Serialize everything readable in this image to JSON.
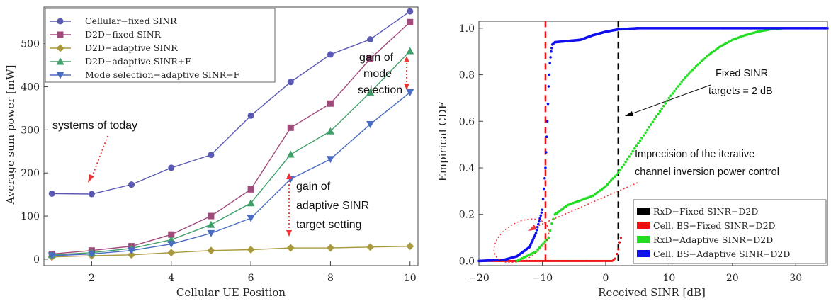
{
  "chart_data": [
    {
      "type": "line",
      "title": "",
      "xlabel": "Cellular UE Position",
      "ylabel": "Average sum power [mW]",
      "x": [
        1,
        2,
        3,
        4,
        5,
        6,
        7,
        8,
        9,
        10
      ],
      "xlim": [
        0.8,
        10.2
      ],
      "ylim": [
        -15,
        585
      ],
      "xticks": [
        2,
        4,
        6,
        8,
        10
      ],
      "yticks": [
        0,
        100,
        200,
        300,
        400,
        500
      ],
      "grid": false,
      "legend_position": "top-left",
      "series": [
        {
          "name": "Cellular−fixed SINR",
          "color": "#5a5ab4",
          "marker": "circle",
          "values": [
            152,
            151,
            173,
            212,
            242,
            333,
            411,
            475,
            510,
            575
          ]
        },
        {
          "name": "D2D−fixed SINR",
          "color": "#a04a7c",
          "marker": "square",
          "values": [
            12,
            20,
            30,
            57,
            100,
            162,
            305,
            361,
            465,
            550
          ]
        },
        {
          "name": "D2D−adaptive SINR",
          "color": "#a89a3c",
          "marker": "diamond",
          "values": [
            5,
            8,
            10,
            15,
            20,
            22,
            26,
            26,
            28,
            30
          ]
        },
        {
          "name": "D2D−adaptive SINR+F",
          "color": "#3fa06a",
          "marker": "triangle-up",
          "values": [
            10,
            15,
            25,
            45,
            80,
            130,
            243,
            297,
            387,
            483
          ]
        },
        {
          "name": "Mode selection−adaptive SINR+F",
          "color": "#4a6cc0",
          "marker": "triangle-down",
          "values": [
            8,
            12,
            20,
            35,
            60,
            95,
            186,
            232,
            313,
            387
          ]
        }
      ],
      "annotations": [
        {
          "text": "systems of today"
        },
        {
          "text": "gain of adaptive SINR target setting"
        },
        {
          "text": "gain of mode selection"
        }
      ]
    },
    {
      "type": "scatter",
      "title": "",
      "xlabel": "Received SINR [dB]",
      "ylabel": "Empirical CDF",
      "xlim": [
        -20,
        35
      ],
      "ylim": [
        -0.02,
        1.03
      ],
      "xticks": [
        -20,
        -10,
        0,
        10,
        20,
        30
      ],
      "yticks": [
        0.0,
        0.2,
        0.4,
        0.6,
        0.8,
        1.0
      ],
      "grid": false,
      "legend_position": "bottom-right",
      "series": [
        {
          "name": "RxD−Fixed SINR−D2D",
          "color": "#000000",
          "x": [
            2,
            2
          ],
          "y": [
            0,
            1
          ]
        },
        {
          "name": "Cell. BS−Fixed SINR−D2D",
          "color": "#ee1111",
          "x": [
            -9.5,
            -9.5,
            0,
            1,
            1.5,
            1.8,
            2,
            2.2,
            2.4
          ],
          "y": [
            0,
            1,
            0.0,
            0.0,
            0.01,
            0.03,
            0.05,
            0.08,
            0.1
          ]
        },
        {
          "name": "RxD−Adaptive SINR−D2D",
          "color": "#22dd22",
          "x": [
            -14,
            -11,
            -9,
            -8.5,
            -8,
            -7,
            -6,
            -4,
            -2,
            0,
            2,
            4,
            6,
            8,
            10,
            12,
            14,
            16,
            18,
            20,
            22,
            24,
            26,
            28
          ],
          "y": [
            0.0,
            0.04,
            0.1,
            0.16,
            0.2,
            0.22,
            0.24,
            0.26,
            0.28,
            0.32,
            0.38,
            0.46,
            0.54,
            0.62,
            0.7,
            0.77,
            0.83,
            0.88,
            0.92,
            0.95,
            0.97,
            0.985,
            0.995,
            1.0
          ]
        },
        {
          "name": "Cell. BS−Adaptive SINR−D2D",
          "color": "#1111ee",
          "x": [
            -20,
            -16,
            -14,
            -12,
            -11,
            -10,
            -9.5,
            -9.2,
            -9,
            -8.8,
            -8.6,
            -8.4,
            -8,
            -6,
            -4,
            -2,
            0,
            2,
            5
          ],
          "y": [
            0.0,
            0.005,
            0.02,
            0.06,
            0.12,
            0.22,
            0.4,
            0.6,
            0.75,
            0.85,
            0.9,
            0.93,
            0.94,
            0.945,
            0.95,
            0.97,
            0.985,
            0.995,
            1.0
          ]
        }
      ],
      "annotations": [
        {
          "text": "Fixed SINR targets = 2 dB"
        },
        {
          "text": "Imprecision of the iterative channel inversion power control"
        }
      ]
    }
  ],
  "left": {
    "annotation_today": "systems of today",
    "annotation_adapt_1": "gain of",
    "annotation_adapt_2": "adaptive SINR",
    "annotation_adapt_3": "target setting",
    "annotation_mode_1": "gain of",
    "annotation_mode_2": "mode",
    "annotation_mode_3": "selection"
  },
  "right": {
    "annotation_fixed_1": "Fixed SINR",
    "annotation_fixed_2": "targets = 2 dB",
    "annotation_imp_1": "Imprecision of the iterative",
    "annotation_imp_2": "channel inversion power control"
  }
}
